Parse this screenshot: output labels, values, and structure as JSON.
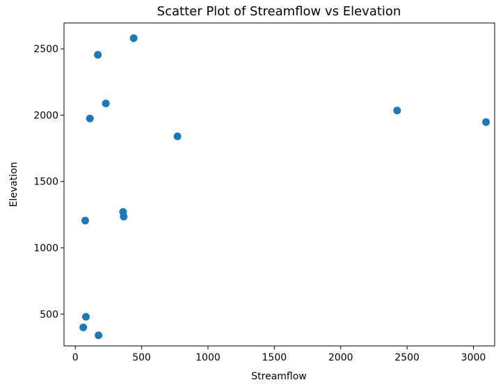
{
  "chart_data": {
    "type": "scatter",
    "title": "Scatter Plot of Streamflow vs Elevation",
    "xlabel": "Streamflow",
    "ylabel": "Elevation",
    "xlim": [
      -85,
      3160
    ],
    "ylim": [
      260,
      2695
    ],
    "x_ticks": [
      0,
      500,
      1000,
      1500,
      2000,
      2500,
      3000
    ],
    "y_ticks": [
      500,
      1000,
      1500,
      2000,
      2500
    ],
    "grid": false,
    "point_color": "#1f77b4",
    "points": [
      {
        "x": 440,
        "y": 2580
      },
      {
        "x": 170,
        "y": 2455
      },
      {
        "x": 230,
        "y": 2088
      },
      {
        "x": 110,
        "y": 1975
      },
      {
        "x": 2425,
        "y": 2035
      },
      {
        "x": 3095,
        "y": 1948
      },
      {
        "x": 770,
        "y": 1840
      },
      {
        "x": 360,
        "y": 1270
      },
      {
        "x": 365,
        "y": 1235
      },
      {
        "x": 75,
        "y": 1205
      },
      {
        "x": 80,
        "y": 480
      },
      {
        "x": 60,
        "y": 400
      },
      {
        "x": 175,
        "y": 340
      }
    ]
  }
}
